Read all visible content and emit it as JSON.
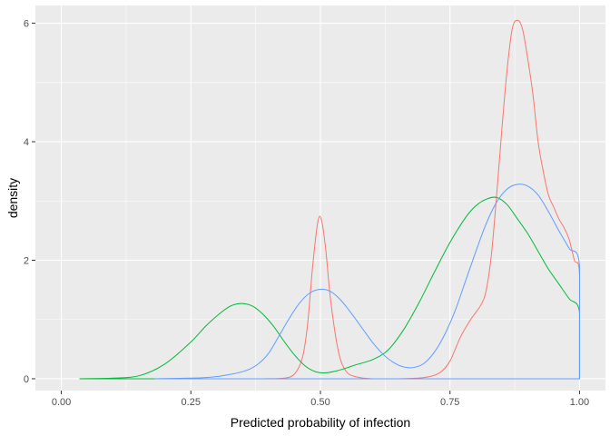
{
  "chart_data": {
    "type": "line",
    "title": "",
    "xlabel": "Predicted probability of infection",
    "ylabel": "density",
    "xlim": [
      -0.05,
      1.05
    ],
    "ylim": [
      -0.2,
      6.3
    ],
    "x_ticks": [
      0.0,
      0.25,
      0.5,
      0.75,
      1.0
    ],
    "x_tick_labels": [
      "0.00",
      "0.25",
      "0.50",
      "0.75",
      "1.00"
    ],
    "y_ticks": [
      0,
      2,
      4,
      6
    ],
    "y_tick_labels": [
      "0",
      "2",
      "4",
      "6"
    ],
    "grid": true,
    "legend": "none",
    "series": [
      {
        "color": "#F8766D",
        "x": [
          0.39,
          0.43,
          0.45,
          0.465,
          0.475,
          0.485,
          0.495,
          0.502,
          0.51,
          0.52,
          0.535,
          0.55,
          0.57,
          0.6,
          0.65,
          0.7,
          0.73,
          0.75,
          0.77,
          0.79,
          0.81,
          0.82,
          0.83,
          0.84,
          0.85,
          0.86,
          0.87,
          0.88,
          0.89,
          0.9,
          0.91,
          0.92,
          0.93,
          0.94,
          0.95,
          0.96,
          0.97,
          0.98,
          0.99,
          1.0,
          1.0,
          0.39
        ],
        "y": [
          0.0,
          0.01,
          0.08,
          0.35,
          0.9,
          1.9,
          2.65,
          2.68,
          2.2,
          1.3,
          0.45,
          0.12,
          0.03,
          0.0,
          0.0,
          0.02,
          0.1,
          0.3,
          0.7,
          1.0,
          1.25,
          1.5,
          2.1,
          3.1,
          4.2,
          5.2,
          5.9,
          6.05,
          5.9,
          5.4,
          4.8,
          4.0,
          3.5,
          3.1,
          2.9,
          2.7,
          2.55,
          2.35,
          2.0,
          1.75,
          0.0,
          0.0
        ]
      },
      {
        "color": "#00BA38",
        "x": [
          0.035,
          0.1,
          0.15,
          0.2,
          0.25,
          0.28,
          0.31,
          0.33,
          0.35,
          0.37,
          0.39,
          0.41,
          0.43,
          0.45,
          0.47,
          0.49,
          0.51,
          0.53,
          0.55,
          0.57,
          0.6,
          0.63,
          0.66,
          0.69,
          0.72,
          0.75,
          0.78,
          0.8,
          0.82,
          0.84,
          0.86,
          0.88,
          0.9,
          0.92,
          0.94,
          0.96,
          0.98,
          1.0,
          1.0,
          0.035
        ],
        "y": [
          0.0,
          0.01,
          0.05,
          0.25,
          0.62,
          0.9,
          1.13,
          1.24,
          1.27,
          1.22,
          1.08,
          0.88,
          0.63,
          0.4,
          0.22,
          0.12,
          0.1,
          0.13,
          0.18,
          0.24,
          0.32,
          0.48,
          0.82,
          1.28,
          1.8,
          2.3,
          2.72,
          2.92,
          3.03,
          3.06,
          2.94,
          2.7,
          2.45,
          2.15,
          1.85,
          1.6,
          1.35,
          1.12,
          0.0,
          0.0
        ]
      },
      {
        "color": "#619CFF",
        "x": [
          0.18,
          0.28,
          0.33,
          0.36,
          0.38,
          0.4,
          0.42,
          0.44,
          0.46,
          0.48,
          0.5,
          0.52,
          0.54,
          0.56,
          0.58,
          0.6,
          0.62,
          0.64,
          0.66,
          0.68,
          0.7,
          0.72,
          0.74,
          0.76,
          0.78,
          0.8,
          0.82,
          0.84,
          0.86,
          0.88,
          0.9,
          0.92,
          0.94,
          0.96,
          0.98,
          1.0,
          1.0,
          0.18
        ],
        "y": [
          0.0,
          0.02,
          0.08,
          0.15,
          0.25,
          0.43,
          0.72,
          1.02,
          1.28,
          1.45,
          1.51,
          1.47,
          1.32,
          1.1,
          0.86,
          0.62,
          0.42,
          0.28,
          0.2,
          0.19,
          0.26,
          0.45,
          0.75,
          1.15,
          1.65,
          2.15,
          2.62,
          2.98,
          3.2,
          3.28,
          3.25,
          3.1,
          2.82,
          2.5,
          2.2,
          1.9,
          0.0,
          0.0
        ]
      }
    ]
  }
}
